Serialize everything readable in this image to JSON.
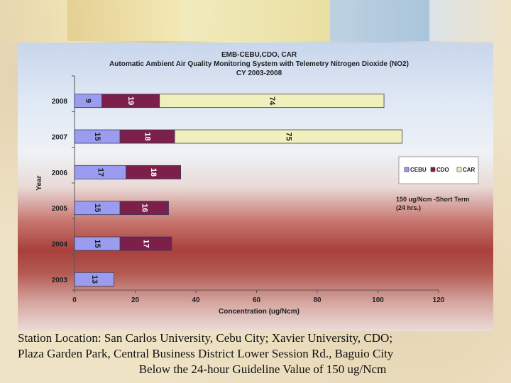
{
  "caption": {
    "line1": "Station Location: San Carlos University, Cebu City; Xavier University, CDO;",
    "line2": "Plaza Garden Park, Central Business District Lower Session Rd., Baguio City",
    "line3": "Below the 24-hour Guideline Value of 150 ug/Ncm"
  },
  "guideline_note": {
    "line1": "150 ug/Ncm -Short Term",
    "line2": "(24 hrs.)"
  },
  "chart_data": {
    "type": "bar",
    "orientation": "horizontal",
    "stacked": true,
    "title_lines": [
      "EMB-CEBU,CDO, CAR",
      "Automatic Ambient Air Quality Monitoring System with Telemetry Nitrogen Dioxide (NO2)",
      "CY 2003-2008"
    ],
    "xlabel": "Concentration (ug/Ncm)",
    "ylabel": "Year",
    "xlim": [
      0,
      120
    ],
    "xticks": [
      0,
      20,
      40,
      60,
      80,
      100,
      120
    ],
    "categories": [
      "2008",
      "2007",
      "2006",
      "2005",
      "2004",
      "2003"
    ],
    "series": [
      {
        "name": "CEBU",
        "color": "#9a9cf0",
        "values": [
          9,
          15,
          17,
          15,
          15,
          13
        ]
      },
      {
        "name": "CDO",
        "color": "#7c1f4a",
        "values": [
          19,
          18,
          18,
          16,
          17,
          null
        ]
      },
      {
        "name": "CAR",
        "color": "#f0f0bc",
        "values": [
          74,
          75,
          null,
          null,
          null,
          null
        ]
      }
    ],
    "legend_position": "right"
  }
}
